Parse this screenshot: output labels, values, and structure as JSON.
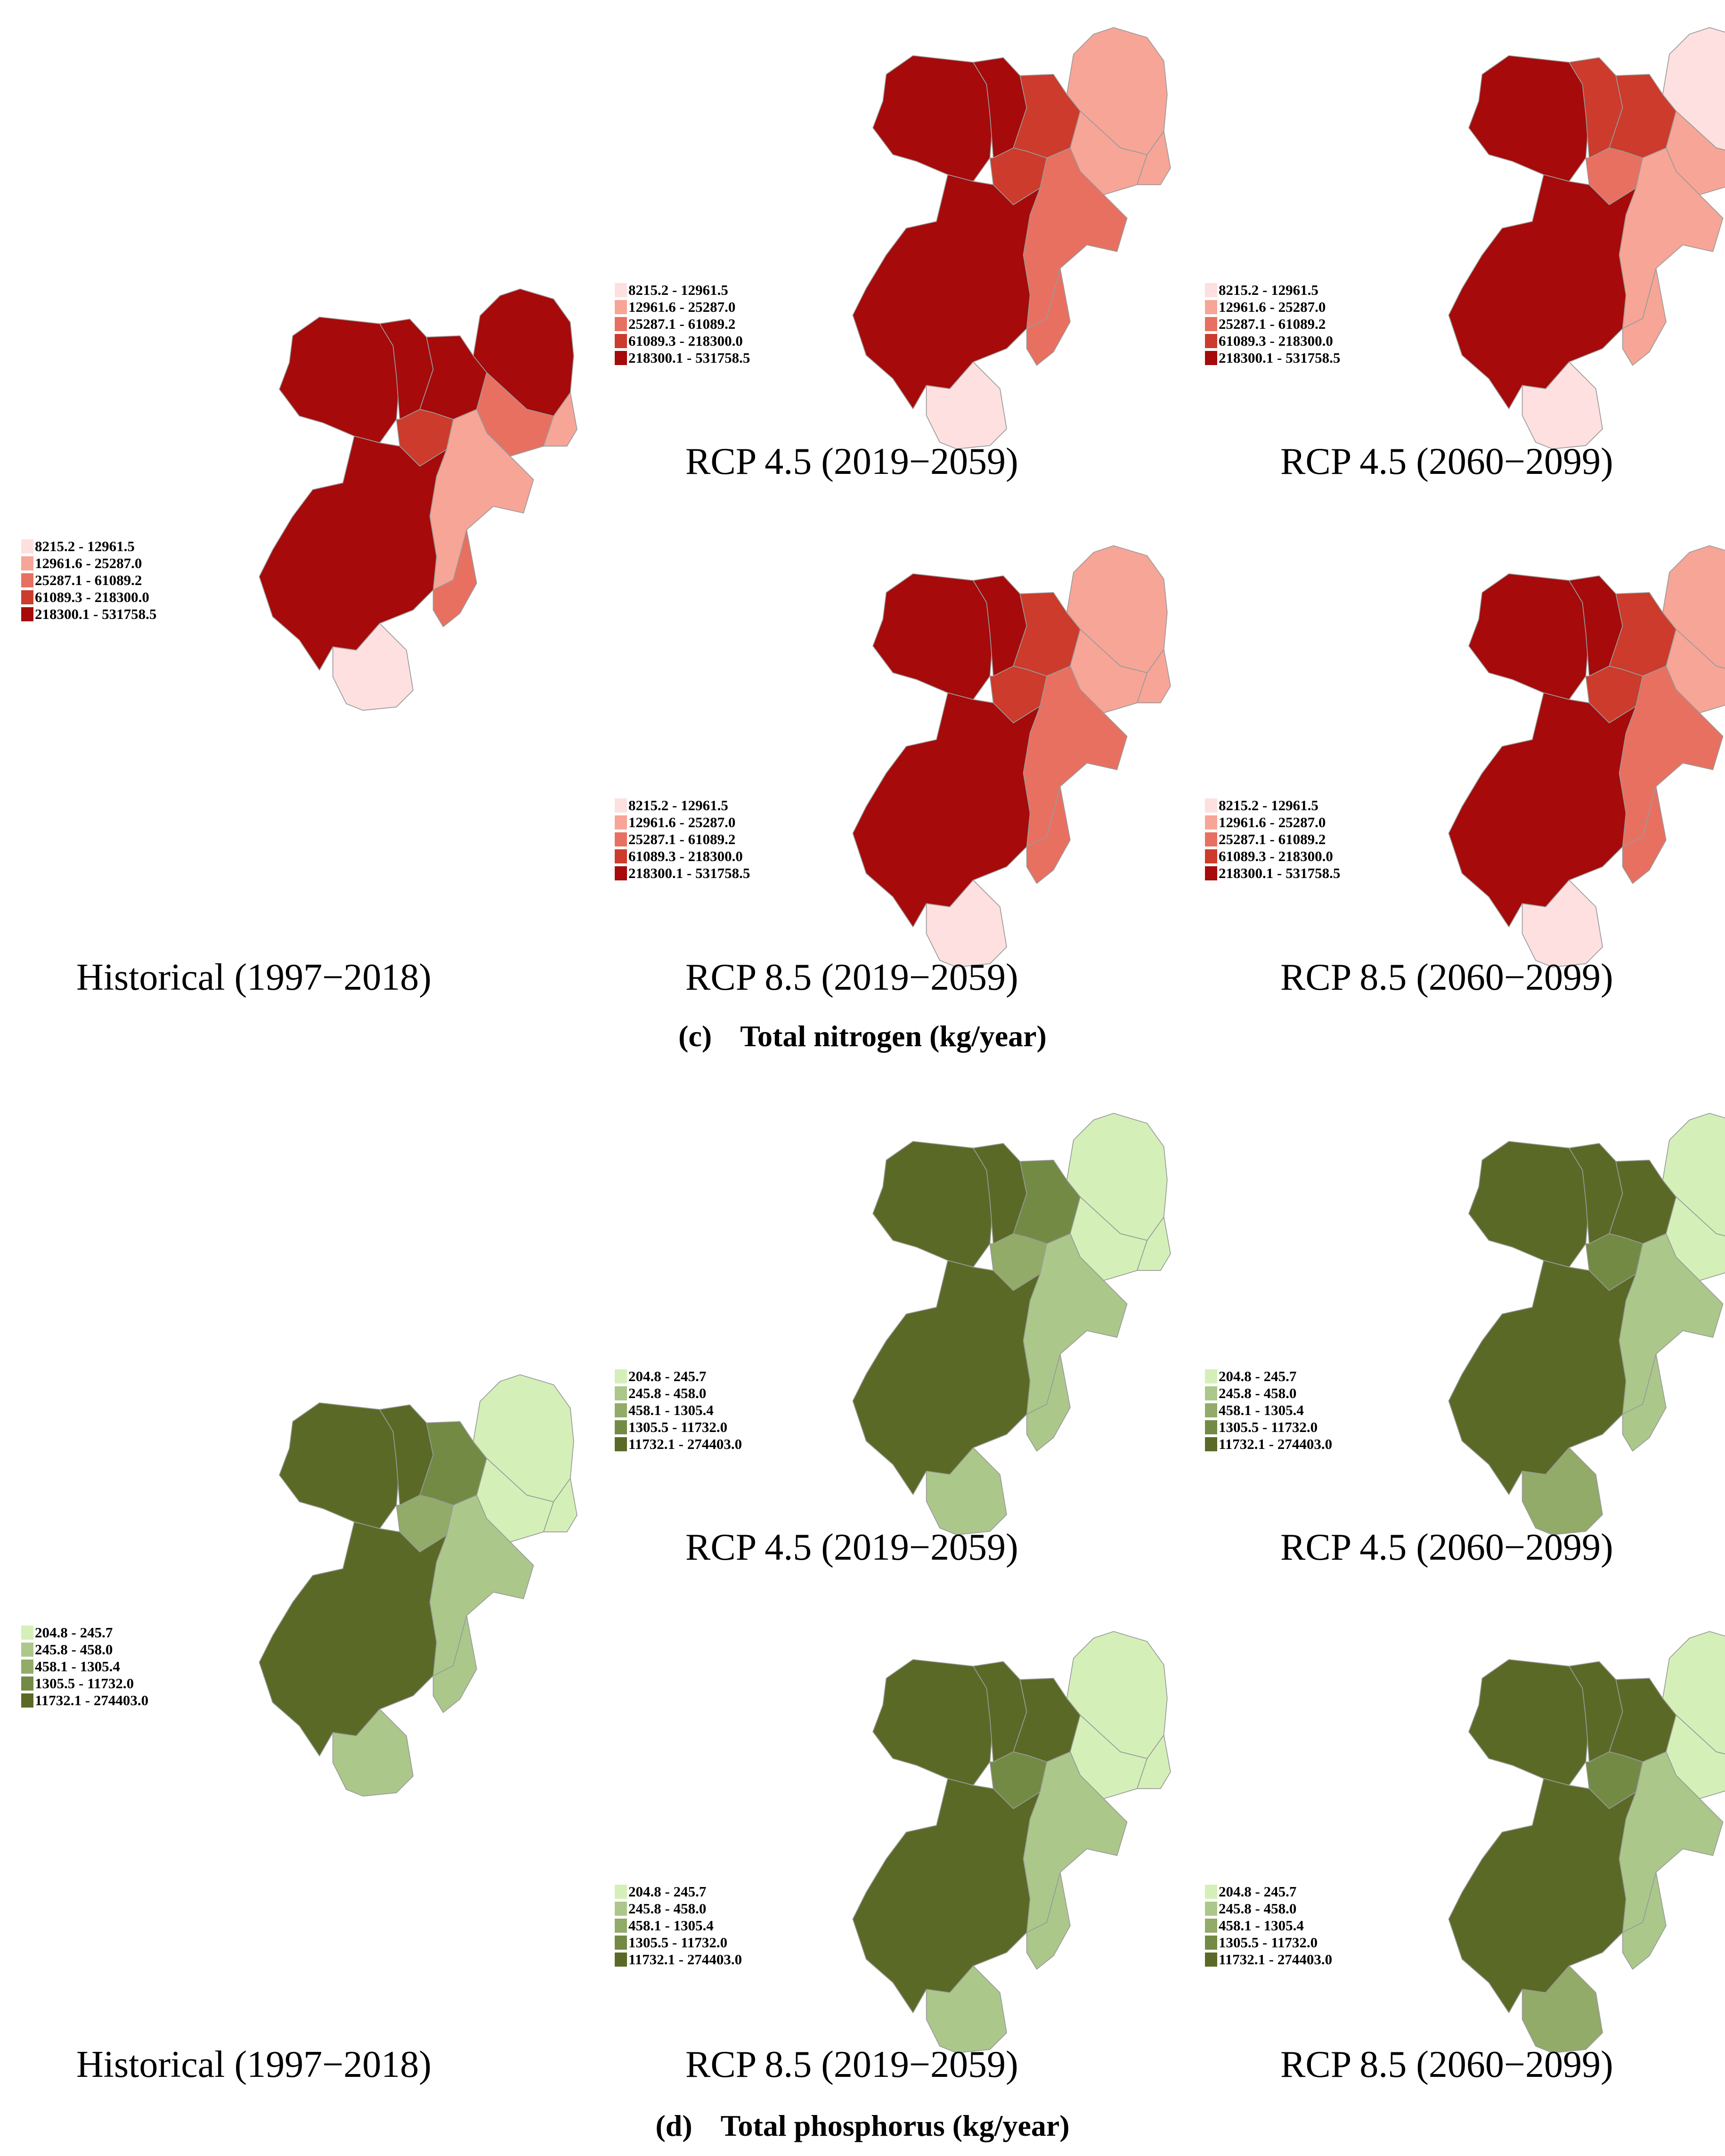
{
  "sections": [
    {
      "id": "c",
      "letter": "(c)",
      "title": "Total nitrogen (kg/year)",
      "legend": [
        {
          "label": "8215.2 - 12961.5",
          "color": "#fde0df"
        },
        {
          "label": "12961.6 - 25287.0",
          "color": "#f7a597"
        },
        {
          "label": "25287.1 - 61089.2",
          "color": "#e87060"
        },
        {
          "label": "61089.3 - 218300.0",
          "color": "#cc3b2b"
        },
        {
          "label": "218300.1 - 531758.5",
          "color": "#a60a0a"
        }
      ],
      "panels": [
        {
          "name": "historical",
          "caption": "Historical (1997−2018)",
          "classes": [
            4,
            4,
            4,
            3,
            4,
            2,
            1,
            1,
            4,
            2,
            0
          ]
        },
        {
          "name": "rcp45-2019-2059",
          "caption": "RCP 4.5 (2019−2059)",
          "classes": [
            4,
            4,
            3,
            3,
            1,
            1,
            1,
            2,
            4,
            2,
            0
          ]
        },
        {
          "name": "rcp45-2060-2099",
          "caption": "RCP 4.5 (2060−2099)",
          "classes": [
            4,
            3,
            3,
            2,
            0,
            1,
            0,
            1,
            4,
            1,
            0
          ]
        },
        {
          "name": "rcp85-2019-2059",
          "caption": "RCP 8.5 (2019−2059)",
          "classes": [
            4,
            4,
            3,
            3,
            1,
            1,
            1,
            2,
            4,
            2,
            0
          ]
        },
        {
          "name": "rcp85-2060-2099",
          "caption": "RCP 8.5 (2060−2099)",
          "classes": [
            4,
            4,
            3,
            3,
            1,
            1,
            1,
            2,
            4,
            2,
            0
          ]
        }
      ]
    },
    {
      "id": "d",
      "letter": "(d)",
      "title": "Total phosphorus (kg/year)",
      "legend": [
        {
          "label": "204.8 - 245.7",
          "color": "#d4f0b8"
        },
        {
          "label": "245.8 - 458.0",
          "color": "#abc88a"
        },
        {
          "label": "458.1 - 1305.4",
          "color": "#92ab68"
        },
        {
          "label": "1305.5 - 11732.0",
          "color": "#738a45"
        },
        {
          "label": "11732.1 - 274403.0",
          "color": "#5a6a26"
        }
      ],
      "panels": [
        {
          "name": "historical",
          "caption": "Historical (1997−2018)",
          "classes": [
            4,
            4,
            3,
            2,
            0,
            0,
            0,
            1,
            4,
            1,
            1
          ]
        },
        {
          "name": "rcp45-2019-2059",
          "caption": "RCP 4.5 (2019−2059)",
          "classes": [
            4,
            4,
            3,
            2,
            0,
            0,
            0,
            1,
            4,
            1,
            1
          ]
        },
        {
          "name": "rcp45-2060-2099",
          "caption": "RCP 4.5 (2060−2099)",
          "classes": [
            4,
            4,
            4,
            3,
            0,
            0,
            0,
            1,
            4,
            1,
            2
          ]
        },
        {
          "name": "rcp85-2019-2059",
          "caption": "RCP 8.5 (2019−2059)",
          "classes": [
            4,
            4,
            4,
            3,
            0,
            0,
            0,
            1,
            4,
            1,
            1
          ]
        },
        {
          "name": "rcp85-2060-2099",
          "caption": "RCP 8.5 (2060−2099)",
          "classes": [
            4,
            4,
            4,
            3,
            0,
            0,
            0,
            1,
            4,
            1,
            2
          ]
        }
      ]
    }
  ]
}
